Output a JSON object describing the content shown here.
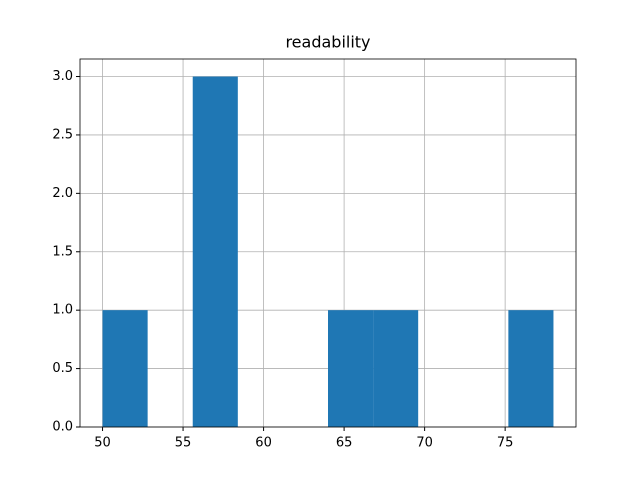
{
  "chart_data": {
    "type": "histogram",
    "title": "readability",
    "bins": [
      50,
      52.8,
      55.6,
      58.4,
      61.2,
      64,
      66.8,
      69.6,
      72.4,
      75.2,
      78
    ],
    "counts": [
      1,
      0,
      3,
      0,
      0,
      1,
      1,
      0,
      0,
      1
    ],
    "color": "#1f77b4",
    "xlim": [
      48.6,
      79.4
    ],
    "xticks": [
      50,
      55,
      60,
      65,
      70,
      75
    ],
    "ylim": [
      0,
      3.15
    ],
    "yticks": [
      {
        "value": 0,
        "label": "0.0"
      },
      {
        "value": 0.5,
        "label": "0.5"
      },
      {
        "value": 1,
        "label": "1.0"
      },
      {
        "value": 1.5,
        "label": "1.5"
      },
      {
        "value": 2,
        "label": "2.0"
      },
      {
        "value": 2.5,
        "label": "2.5"
      },
      {
        "value": 3,
        "label": "3.0"
      }
    ],
    "grid": true
  }
}
